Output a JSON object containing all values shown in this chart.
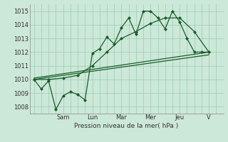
{
  "title": "",
  "xlabel": "Pression niveau de la mer( hPa )",
  "ylabel": "",
  "bg_color": "#cce8d8",
  "grid_color": "#99ccb0",
  "line_color": "#1a5c2a",
  "ylim": [
    1007.5,
    1015.5
  ],
  "xlim": [
    -0.3,
    13.0
  ],
  "day_labels": [
    "Sam",
    "Lun",
    "Mar",
    "Mer",
    "Jeu",
    "V"
  ],
  "day_positions": [
    2.0,
    4.0,
    6.0,
    8.0,
    10.0,
    12.0
  ],
  "yticks": [
    1008,
    1009,
    1010,
    1011,
    1012,
    1013,
    1014,
    1015
  ],
  "line1_x": [
    0,
    0.5,
    1.0,
    1.5,
    2.0,
    2.5,
    3.0,
    3.5,
    4.0,
    4.5,
    5.0,
    5.5,
    6.0,
    6.5,
    7.0,
    7.5,
    8.0,
    8.5,
    9.0,
    9.5,
    10.0,
    10.5,
    11.0,
    11.5,
    12.0
  ],
  "line1_y": [
    1010.0,
    1009.3,
    1009.9,
    1007.8,
    1008.8,
    1009.1,
    1008.9,
    1008.5,
    1011.9,
    1012.25,
    1013.1,
    1012.6,
    1013.8,
    1014.5,
    1013.3,
    1015.0,
    1015.0,
    1014.5,
    1013.7,
    1015.0,
    1014.2,
    1013.0,
    1012.0,
    1012.0,
    1012.0
  ],
  "line2_x": [
    0,
    1.0,
    2.0,
    3.0,
    4.0,
    5.0,
    6.0,
    7.0,
    8.0,
    9.0,
    10.0,
    11.0,
    12.0
  ],
  "line2_y": [
    1010.0,
    1010.0,
    1010.1,
    1010.3,
    1011.0,
    1012.0,
    1013.0,
    1013.5,
    1014.1,
    1014.5,
    1014.5,
    1013.5,
    1012.0
  ],
  "line3_x": [
    0,
    12
  ],
  "line3_y": [
    1010.1,
    1012.0
  ],
  "line4_x": [
    0,
    12
  ],
  "line4_y": [
    1010.0,
    1011.8
  ]
}
